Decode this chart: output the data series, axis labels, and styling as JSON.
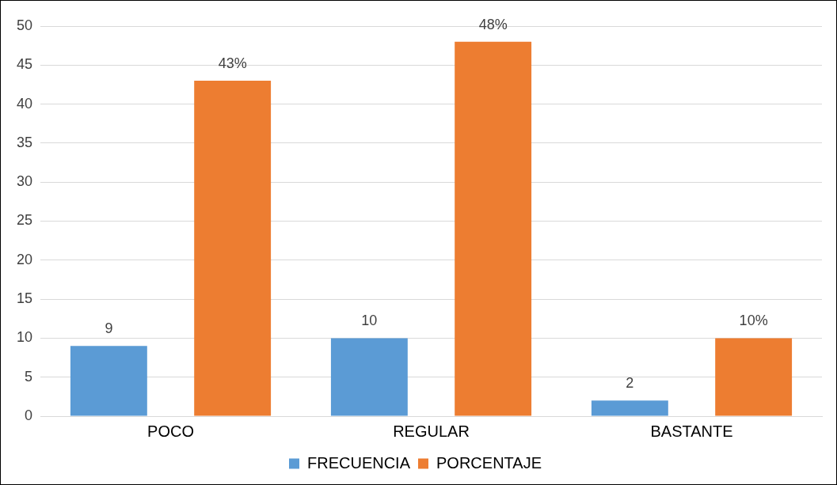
{
  "chart_data": {
    "type": "bar",
    "categories": [
      "POCO",
      "REGULAR",
      "BASTANTE"
    ],
    "series": [
      {
        "name": "FRECUENCIA",
        "color": "#5b9bd5",
        "values": [
          9,
          10,
          2
        ],
        "value_labels": [
          "9",
          "10",
          "2"
        ]
      },
      {
        "name": "PORCENTAJE",
        "color": "#ed7d31",
        "values": [
          43,
          48,
          10
        ],
        "value_labels": [
          "43%",
          "48%",
          "10%"
        ]
      }
    ],
    "ylim": [
      0,
      50
    ],
    "yticks": [
      0,
      5,
      10,
      15,
      20,
      25,
      30,
      35,
      40,
      45,
      50
    ],
    "grid": "y",
    "legend": "bottom"
  }
}
